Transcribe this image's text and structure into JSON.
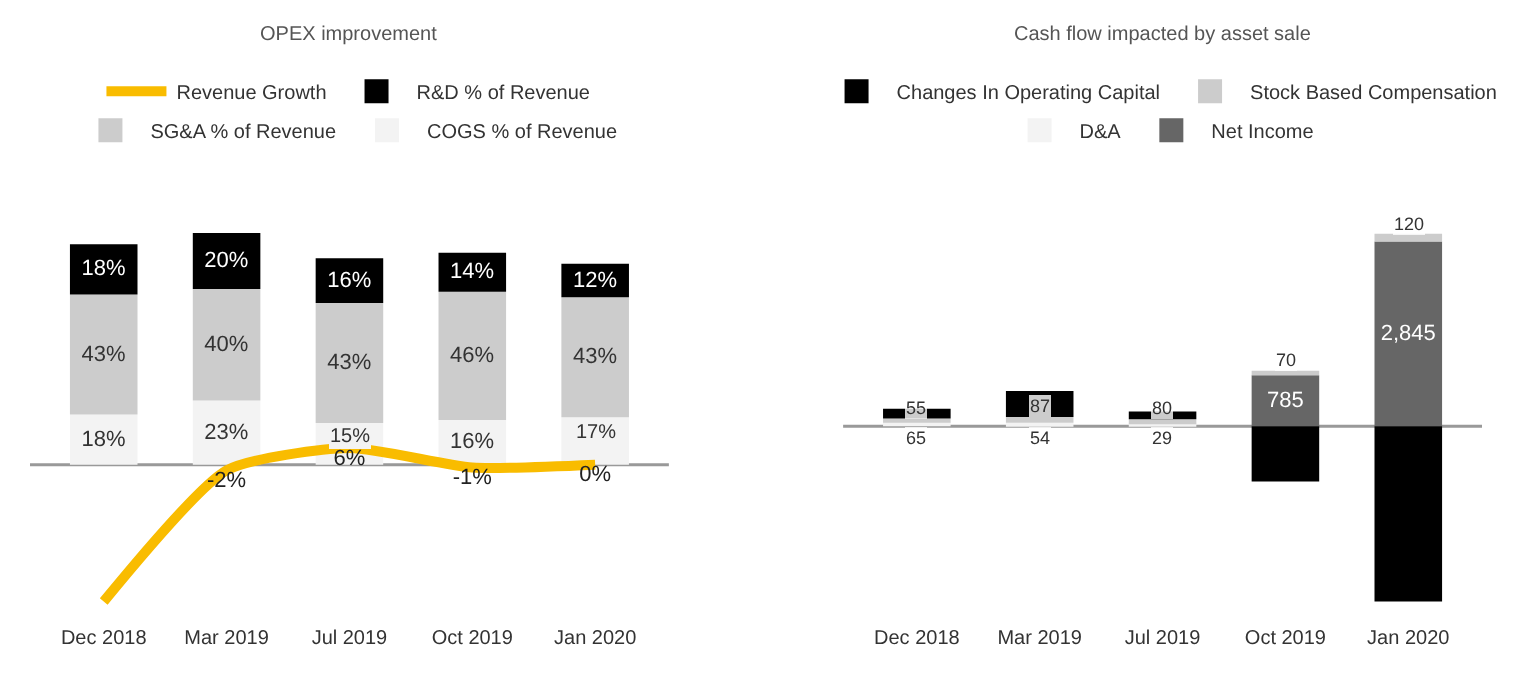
{
  "chart_data": [
    {
      "type": "bar",
      "title": "OPEX improvement",
      "stacked": true,
      "legend": "top",
      "grid": false,
      "tick_labels": "x",
      "marker": "none",
      "categories": [
        "Dec 2018",
        "Mar 2019",
        "Jul 2019",
        "Oct 2019",
        "Jan 2020"
      ],
      "ref_lines": [
        {
          "axis": "y",
          "value": 0,
          "color": "#999999"
        }
      ],
      "series": [
        {
          "name": "COGS % of Revenue",
          "color": "#f3f3f3",
          "values": [
            18,
            23,
            15,
            16,
            17
          ],
          "value_labels": [
            "18%",
            "23%",
            "15%",
            "16%",
            "17%"
          ]
        },
        {
          "name": "SG&A % of Revenue",
          "color": "#cccccc",
          "values": [
            43,
            40,
            43,
            46,
            43
          ],
          "value_labels": [
            "43%",
            "40%",
            "43%",
            "46%",
            "43%"
          ]
        },
        {
          "name": "R&D % of Revenue",
          "color": "#000000",
          "values": [
            18,
            20,
            16,
            14,
            12
          ],
          "value_labels": [
            "18%",
            "20%",
            "16%",
            "14%",
            "12%"
          ]
        },
        {
          "name": "Revenue Growth",
          "type": "line",
          "color": "#f9bc00",
          "values": [
            -49,
            -2,
            6,
            -1,
            0
          ],
          "value_labels": [
            null,
            "-2%",
            "6%",
            "-1%",
            "0%"
          ]
        }
      ]
    },
    {
      "type": "bar",
      "title": "Cash flow impacted by asset sale",
      "stacked": true,
      "legend": "top",
      "grid": false,
      "tick_labels": "x",
      "categories": [
        "Dec 2018",
        "Mar 2019",
        "Jul 2019",
        "Oct 2019",
        "Jan 2020"
      ],
      "ref_lines": [
        {
          "axis": "y",
          "value": 0,
          "color": "#999999"
        }
      ],
      "series": [
        {
          "name": "Net Income",
          "color": "#666666",
          "values": [
            null,
            null,
            null,
            785,
            2845
          ],
          "value_labels": [
            null,
            null,
            null,
            "785",
            "2,845"
          ]
        },
        {
          "name": "D&A",
          "color": "#f3f3f3",
          "values": [
            65,
            54,
            29,
            null,
            null
          ],
          "value_labels": [
            "65",
            "54",
            "29",
            null,
            null
          ]
        },
        {
          "name": "Stock Based Compensation",
          "color": "#cccccc",
          "values": [
            55,
            87,
            80,
            70,
            120
          ],
          "value_labels": [
            "55",
            "87",
            "80",
            "70",
            "120"
          ]
        },
        {
          "name": "Changes In Operating Capital",
          "color": "#000000",
          "values": [
            150,
            400,
            120,
            -850,
            -2700
          ],
          "value_labels": [
            null,
            null,
            null,
            null,
            null
          ]
        }
      ]
    }
  ]
}
